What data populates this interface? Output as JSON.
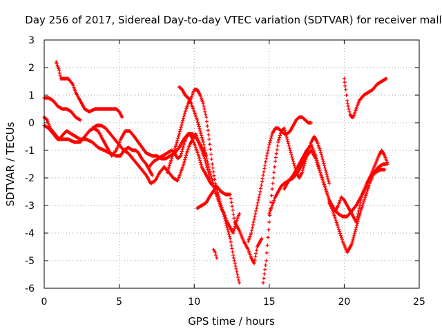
{
  "chart_data": {
    "type": "scatter",
    "title": "Day 256 of 2017, Sidereal Day-to-day VTEC variation (SDTVAR) for receiver mall",
    "xlabel": "GPS time / hours",
    "ylabel": "SDTVAR / TECUs",
    "xlim": [
      0,
      25
    ],
    "ylim": [
      -6,
      3
    ],
    "xticks": [
      0,
      5,
      10,
      15,
      20,
      25
    ],
    "yticks": [
      -6,
      -5,
      -4,
      -3,
      -2,
      -1,
      0,
      1,
      2,
      3
    ],
    "grid": true,
    "marker": "+",
    "color": "#ff0000",
    "series": [
      {
        "x": [
          0.8,
          1.0,
          1.1,
          1.3,
          1.6,
          1.9,
          2.1,
          2.4,
          2.7,
          3.0,
          3.4,
          3.8,
          4.2,
          4.5,
          4.8,
          5.0,
          5.2
        ],
        "y": [
          2.2,
          1.9,
          1.6,
          1.6,
          1.6,
          1.4,
          1.1,
          0.8,
          0.5,
          0.4,
          0.5,
          0.5,
          0.5,
          0.5,
          0.5,
          0.4,
          0.2
        ]
      },
      {
        "x": [
          0.0,
          0.3,
          0.6,
          0.9,
          1.2,
          1.5,
          1.8,
          2.1,
          2.4
        ],
        "y": [
          0.9,
          0.9,
          0.8,
          0.6,
          0.5,
          0.5,
          0.4,
          0.2,
          0.1
        ]
      },
      {
        "x": [
          0.0,
          0.2,
          0.4,
          0.7,
          1.0,
          1.3,
          1.5,
          1.8,
          2.1,
          2.4,
          2.8,
          3.2,
          3.6,
          4.0,
          4.4,
          4.8,
          5.1,
          5.3,
          5.6,
          5.9,
          6.1,
          6.3,
          6.5,
          6.8,
          7.0,
          7.2
        ],
        "y": [
          0.2,
          0.1,
          -0.2,
          -0.4,
          -0.6,
          -0.4,
          -0.3,
          -0.4,
          -0.5,
          -0.6,
          -0.6,
          -0.7,
          -0.9,
          -1.0,
          -1.1,
          -1.2,
          -1.2,
          -1.0,
          -0.9,
          -1.0,
          -1.0,
          -1.1,
          -1.3,
          -1.5,
          -1.7,
          -1.9
        ]
      },
      {
        "x": [
          0.0,
          0.3,
          0.6,
          0.9,
          1.2,
          1.6,
          2.0,
          2.4,
          2.7,
          3.0,
          3.3,
          3.6,
          3.9,
          4.2,
          4.5,
          4.8,
          5.1,
          5.4,
          5.7,
          6.0,
          6.4,
          6.8,
          7.2,
          7.5,
          7.8,
          8.1,
          8.4,
          8.7,
          9.0,
          9.3,
          9.6,
          9.9,
          10.2,
          10.5,
          10.8
        ],
        "y": [
          -0.1,
          -0.2,
          -0.4,
          -0.6,
          -0.6,
          -0.6,
          -0.7,
          -0.7,
          -0.5,
          -0.3,
          -0.2,
          -0.3,
          -0.6,
          -0.9,
          -1.2,
          -1.0,
          -0.6,
          -0.3,
          -0.3,
          -0.5,
          -0.8,
          -1.1,
          -1.2,
          -1.2,
          -1.3,
          -1.3,
          -1.2,
          -1.1,
          -0.9,
          -0.6,
          -0.4,
          -0.4,
          -0.6,
          -0.9,
          -1.2
        ]
      },
      {
        "x": [
          3.2,
          3.5,
          3.8,
          4.1,
          4.4,
          4.7,
          5.0,
          5.3,
          5.6,
          5.9,
          6.2,
          6.5,
          6.8,
          7.1,
          7.4,
          7.7,
          8.0,
          8.3,
          8.6,
          8.9,
          9.1,
          9.3,
          9.5,
          9.7,
          9.9,
          10.1,
          10.3,
          10.5,
          10.7,
          10.9,
          11.1
        ],
        "y": [
          -0.2,
          -0.1,
          -0.1,
          -0.2,
          -0.4,
          -0.6,
          -0.8,
          -1.0,
          -1.1,
          -1.3,
          -1.5,
          -1.7,
          -1.9,
          -2.2,
          -2.1,
          -1.8,
          -1.6,
          -1.8,
          -2.0,
          -2.1,
          -1.8,
          -1.5,
          -1.1,
          -0.8,
          -0.6,
          -0.4,
          -0.7,
          -1.0,
          -1.3,
          -1.7,
          -2.2
        ]
      },
      {
        "x": [
          7.0,
          7.3,
          7.6,
          7.9,
          8.2,
          8.5,
          8.7,
          8.9,
          9.1,
          9.3,
          9.5,
          9.7,
          9.9,
          10.1,
          10.3,
          10.5,
          10.7,
          10.9,
          11.1,
          11.3
        ],
        "y": [
          -1.6,
          -1.4,
          -1.3,
          -1.2,
          -1.1,
          -1.0,
          -1.1,
          -1.3,
          -1.2,
          -0.8,
          -0.5,
          -0.4,
          -0.6,
          -0.9,
          -1.2,
          -1.6,
          -1.8,
          -2.0,
          -2.2,
          -2.3
        ]
      },
      {
        "x": [
          8.2,
          8.5,
          8.8,
          9.0,
          9.2,
          9.4,
          9.6,
          9.8,
          10.0,
          10.2,
          10.4,
          10.6,
          10.8,
          11.0,
          11.2,
          11.4,
          11.6,
          11.8,
          12.0,
          12.2,
          12.4,
          12.6,
          12.8,
          13.0
        ],
        "y": [
          -1.8,
          -1.3,
          -0.8,
          -0.4,
          0.0,
          0.4,
          0.7,
          0.9,
          1.2,
          1.2,
          1.0,
          0.7,
          0.2,
          -0.6,
          -1.5,
          -2.2,
          -2.6,
          -3.0,
          -3.4,
          -3.8,
          -4.2,
          -4.8,
          -5.3,
          -5.8
        ]
      },
      {
        "x": [
          9.0,
          9.2,
          9.4,
          9.6,
          9.8,
          10.0,
          10.2,
          10.4,
          10.6,
          10.8,
          11.0,
          11.2,
          11.4,
          11.6,
          11.8,
          12.0,
          12.2,
          12.4,
          12.6,
          12.8,
          13.0
        ],
        "y": [
          1.3,
          1.2,
          1.0,
          0.9,
          0.7,
          0.4,
          0.1,
          -0.3,
          -0.7,
          -1.2,
          -1.7,
          -2.1,
          -2.5,
          -2.8,
          -3.1,
          -3.3,
          -3.6,
          -3.8,
          -4.0,
          -3.6,
          -3.3
        ]
      },
      {
        "x": [
          10.2,
          10.5,
          10.8,
          11.0,
          11.5,
          11.8,
          12.1,
          12.4,
          12.7,
          13.0,
          13.3,
          13.6,
          13.8,
          14.0,
          14.2,
          14.5
        ],
        "y": [
          -3.1,
          -3.0,
          -2.9,
          -2.7,
          -2.3,
          -2.5,
          -2.6,
          -2.6,
          -3.6,
          -3.9,
          -4.3,
          -4.6,
          -4.9,
          -5.1,
          -4.5,
          -4.2
        ]
      },
      {
        "x": [
          13.6,
          13.8,
          14.0,
          14.2,
          14.4,
          14.6,
          14.8,
          15.0,
          15.2,
          15.4,
          15.6,
          15.8,
          16.0,
          16.2,
          16.4,
          16.6,
          16.8,
          17.0,
          17.2,
          17.4,
          17.6,
          17.8
        ],
        "y": [
          -4.3,
          -4.0,
          -3.5,
          -3.0,
          -2.5,
          -1.9,
          -1.3,
          -0.8,
          -0.4,
          -0.2,
          -0.2,
          -0.3,
          -0.4,
          -0.4,
          -0.3,
          -0.1,
          0.1,
          0.2,
          0.2,
          0.1,
          0.0,
          0.0
        ]
      },
      {
        "x": [
          14.6,
          14.8,
          15.0,
          15.2,
          15.4,
          15.6,
          15.8,
          16.0,
          16.2,
          16.4,
          16.6,
          16.8,
          17.0,
          17.2,
          17.4,
          17.6,
          17.8,
          18.0,
          18.2,
          18.4,
          18.6,
          18.8,
          19.0
        ],
        "y": [
          -5.8,
          -5.0,
          -3.6,
          -2.4,
          -1.4,
          -0.7,
          -0.3,
          -0.2,
          -0.6,
          -1.0,
          -1.4,
          -1.8,
          -2.0,
          -1.8,
          -1.4,
          -1.0,
          -0.7,
          -0.5,
          -0.7,
          -1.0,
          -1.4,
          -1.8,
          -2.2
        ]
      },
      {
        "x": [
          15.0,
          15.2,
          15.4,
          15.6,
          15.8,
          16.0,
          16.3,
          16.6,
          16.9,
          17.2,
          17.5,
          17.8,
          18.1,
          18.4,
          18.7,
          19.0,
          19.3,
          19.6,
          19.9,
          20.2,
          20.5,
          20.8,
          21.1,
          21.4,
          21.7,
          22.0,
          22.3,
          22.6,
          22.8
        ],
        "y": [
          -3.3,
          -3.0,
          -2.7,
          -2.5,
          -2.3,
          -2.2,
          -2.1,
          -2.0,
          -1.8,
          -1.5,
          -1.2,
          -1.0,
          -1.3,
          -1.8,
          -2.3,
          -2.8,
          -3.3,
          -3.8,
          -4.3,
          -4.7,
          -4.4,
          -3.8,
          -3.2,
          -2.7,
          -2.2,
          -1.8,
          -1.6,
          -1.5,
          -1.5
        ]
      },
      {
        "x": [
          16.0,
          16.3,
          16.6,
          16.9,
          17.2,
          17.5,
          17.8,
          18.1,
          18.4,
          18.7,
          19.0,
          19.3,
          19.6,
          19.9,
          20.2,
          20.5,
          20.8,
          21.1,
          21.4,
          21.7,
          22.0,
          22.3,
          22.5,
          22.7,
          22.9
        ],
        "y": [
          -2.4,
          -2.1,
          -1.9,
          -1.6,
          -1.3,
          -1.0,
          -0.8,
          -1.2,
          -1.8,
          -2.3,
          -2.8,
          -3.1,
          -3.3,
          -3.4,
          -3.4,
          -3.2,
          -3.0,
          -2.7,
          -2.4,
          -2.0,
          -1.6,
          -1.2,
          -1.0,
          -1.2,
          -1.5
        ]
      },
      {
        "x": [
          19.0,
          19.2,
          19.4,
          19.6,
          19.8,
          20.0,
          20.2,
          20.5,
          20.8,
          21.0,
          21.2,
          21.5,
          21.8,
          22.1,
          22.4,
          22.7
        ],
        "y": [
          -2.9,
          -3.1,
          -3.2,
          -3.0,
          -2.7,
          -2.8,
          -3.0,
          -3.3,
          -3.6,
          -3.1,
          -2.6,
          -2.2,
          -1.9,
          -1.8,
          -1.7,
          -1.7
        ]
      },
      {
        "x": [
          20.0,
          20.1,
          20.2,
          20.3,
          20.4,
          20.5,
          20.6,
          20.8,
          21.0,
          21.3,
          21.6,
          21.9,
          22.2,
          22.5,
          22.8
        ],
        "y": [
          1.6,
          1.2,
          0.8,
          0.5,
          0.3,
          0.2,
          0.2,
          0.5,
          0.8,
          1.0,
          1.1,
          1.2,
          1.4,
          1.5,
          1.6
        ]
      },
      {
        "x": [
          11.3,
          11.4,
          11.5
        ],
        "y": [
          -4.6,
          -4.7,
          -4.9
        ]
      }
    ]
  }
}
